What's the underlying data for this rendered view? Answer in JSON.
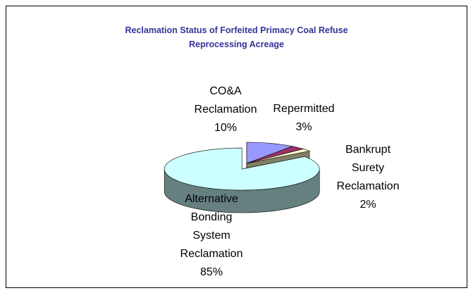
{
  "chart_data": {
    "type": "pie3d",
    "title": "Reclamation Status of Forfeited Primacy Coal Refuse Reprocessing Acreage",
    "categories": [
      "CO&A Reclamation",
      "Repermitted",
      "Bankrupt Surety Reclamation",
      "Alternative Bonding System Reclamation"
    ],
    "values": [
      10,
      3,
      2,
      85
    ],
    "value_labels": [
      "10%",
      "3%",
      "2%",
      "85%"
    ],
    "colors": [
      "#9999ff",
      "#993366",
      "#ffffcc",
      "#ccffff"
    ]
  }
}
